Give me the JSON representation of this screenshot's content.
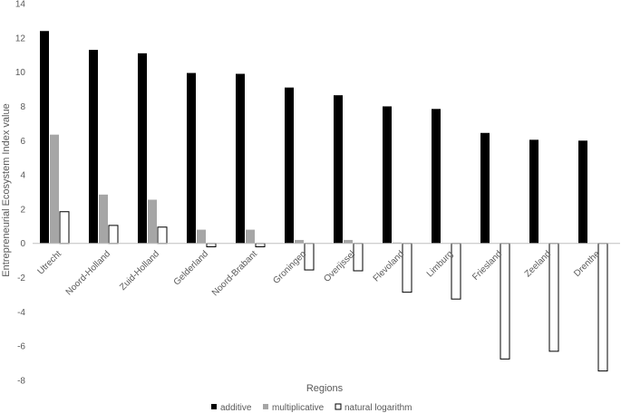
{
  "chart_data": {
    "type": "bar",
    "title": "",
    "xlabel": "Regions",
    "ylabel": "Entrepreneurial Ecosystem Index value",
    "ylim": [
      -8,
      14
    ],
    "ytick_step": 2,
    "grid": false,
    "legend_position": "bottom",
    "categories": [
      "Utrecht",
      "Noord-Holland",
      "Zuid-Holland",
      "Gelderland",
      "Noord-Brabant",
      "Groningen",
      "Overijssel",
      "Flevoland",
      "Limburg",
      "Friesland",
      "Zeeland",
      "Drenthe"
    ],
    "series": [
      {
        "name": "additive",
        "color": "#000000",
        "stroke": "#000000",
        "values": [
          12.4,
          11.3,
          11.1,
          9.95,
          9.9,
          9.1,
          8.65,
          8.0,
          7.85,
          6.45,
          6.05,
          6.0
        ]
      },
      {
        "name": "multiplicative",
        "color": "#a6a6a6",
        "stroke": "#a6a6a6",
        "values": [
          6.35,
          2.85,
          2.55,
          0.8,
          0.8,
          0.2,
          0.2,
          0.05,
          0.0,
          0.0,
          0.0,
          0.0
        ]
      },
      {
        "name": "natural logarithm",
        "color": "#ffffff",
        "stroke": "#000000",
        "values": [
          1.85,
          1.05,
          0.95,
          -0.2,
          -0.2,
          -1.55,
          -1.6,
          -2.85,
          -3.25,
          -6.75,
          -6.3,
          -7.45
        ]
      }
    ]
  }
}
